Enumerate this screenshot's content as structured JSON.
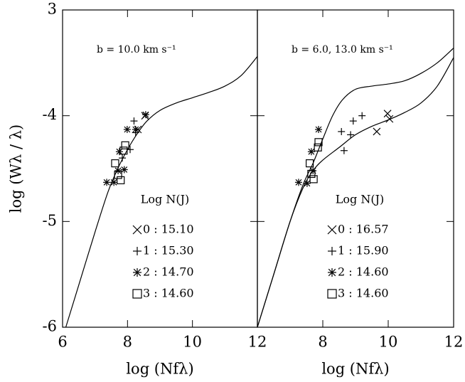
{
  "chart_data": [
    {
      "type": "scatter",
      "annotation": "b = 10.0 km s⁻¹",
      "xlabel": "log (Nfλ)",
      "ylabel": "log (Wλ / λ)",
      "xlim": [
        6,
        12
      ],
      "ylim": [
        -6,
        -3
      ],
      "xticks": [
        6,
        8,
        10,
        12
      ],
      "yticks": [
        -6,
        -5,
        -4,
        {
          "value": -3,
          "label": "3"
        }
      ],
      "ytick_labels": true,
      "legend_title": "Log N(J)",
      "color": "#000000",
      "curves": [
        {
          "x": [
            6.1,
            6.5,
            7,
            7.4,
            7.7,
            8,
            8.3,
            8.6,
            9,
            9.5,
            10,
            10.5,
            11,
            11.5,
            12
          ],
          "values": [
            -6,
            -5.6,
            -5.1,
            -4.72,
            -4.5,
            -4.32,
            -4.17,
            -4.05,
            -3.95,
            -3.88,
            -3.83,
            -3.78,
            -3.72,
            -3.62,
            -3.44
          ]
        }
      ],
      "series": [
        {
          "name": "0 : 15.10",
          "marker": "x",
          "x": [
            8.54,
            8.32
          ],
          "values": [
            -4.0,
            -4.13
          ]
        },
        {
          "name": "1 : 15.30",
          "marker": "+",
          "x": [
            8.2,
            8.25,
            8.08,
            7.84
          ],
          "values": [
            -4.05,
            -4.16,
            -4.32,
            -4.4
          ]
        },
        {
          "name": "2 : 14.70",
          "marker": "*",
          "x": [
            7.36,
            7.58,
            7.71,
            7.9,
            7.75,
            7.99,
            8.25,
            8.56
          ],
          "values": [
            -4.63,
            -4.63,
            -4.52,
            -4.51,
            -4.34,
            -4.13,
            -4.13,
            -3.99
          ]
        },
        {
          "name": "3 : 14.60",
          "marker": "square",
          "x": [
            7.62,
            7.71,
            7.79,
            7.88,
            7.93
          ],
          "values": [
            -4.45,
            -4.56,
            -4.61,
            -4.33,
            -4.28
          ]
        }
      ]
    },
    {
      "type": "scatter",
      "annotation": "b = 6.0, 13.0 km s⁻¹",
      "xlabel": "log (Nfλ)",
      "xlim": [
        6,
        12
      ],
      "ylim": [
        -6,
        -3
      ],
      "xticks": [
        8,
        10,
        12
      ],
      "yticks": [
        -6,
        -5,
        -4,
        -3
      ],
      "ytick_labels": false,
      "legend_title": "Log N(J)",
      "color": "#000000",
      "curves": [
        {
          "x": [
            6,
            6.5,
            7,
            7.4,
            7.7,
            8,
            8.3,
            8.6,
            9,
            9.5,
            10,
            10.5,
            11,
            11.5,
            12
          ],
          "values": [
            -6,
            -5.5,
            -5.0,
            -4.65,
            -4.45,
            -4.22,
            -4.0,
            -3.85,
            -3.75,
            -3.72,
            -3.7,
            -3.67,
            -3.6,
            -3.5,
            -3.36
          ]
        },
        {
          "x": [
            6,
            6.5,
            7,
            7.4,
            7.7,
            8,
            8.5,
            9,
            9.5,
            10,
            10.5,
            11,
            11.5,
            12
          ],
          "values": [
            -6,
            -5.5,
            -5.0,
            -4.68,
            -4.52,
            -4.42,
            -4.3,
            -4.18,
            -4.1,
            -4.04,
            -3.97,
            -3.88,
            -3.72,
            -3.45
          ]
        }
      ],
      "series": [
        {
          "name": "0 : 16.57",
          "marker": "x",
          "x": [
            9.65,
            9.98,
            10.04
          ],
          "values": [
            -4.15,
            -3.98,
            -4.03
          ]
        },
        {
          "name": "1 : 15.90",
          "marker": "+",
          "x": [
            9.2,
            8.93,
            8.85,
            8.57,
            8.65
          ],
          "values": [
            -4.0,
            -4.05,
            -4.18,
            -4.15,
            -4.33
          ]
        },
        {
          "name": "2 : 14.60",
          "marker": "*",
          "x": [
            7.26,
            7.52,
            7.7,
            7.65,
            7.87
          ],
          "values": [
            -4.63,
            -4.64,
            -4.52,
            -4.34,
            -4.13
          ]
        },
        {
          "name": "3 : 14.60",
          "marker": "square",
          "x": [
            7.6,
            7.65,
            7.72,
            7.85,
            7.87
          ],
          "values": [
            -4.45,
            -4.55,
            -4.6,
            -4.3,
            -4.25
          ]
        }
      ]
    }
  ]
}
